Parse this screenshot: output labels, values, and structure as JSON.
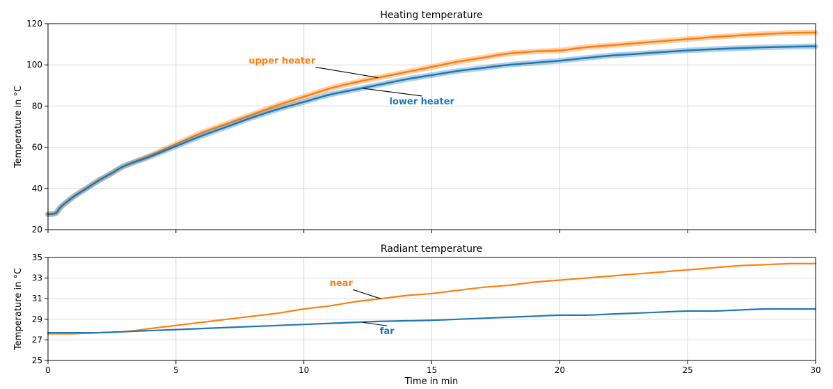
{
  "figure": {
    "xlabel": "Time in min",
    "x_ticks": [
      "0",
      "5",
      "10",
      "15",
      "20",
      "25",
      "30"
    ]
  },
  "chart_data": [
    {
      "type": "line",
      "title": "Heating temperature",
      "xlabel": "",
      "ylabel": "Temperature in °C",
      "xlim": [
        0,
        30
      ],
      "ylim": [
        20,
        120
      ],
      "x_ticks": [
        0,
        5,
        10,
        15,
        20,
        25,
        30
      ],
      "y_ticks": [
        20,
        40,
        60,
        80,
        100,
        120
      ],
      "y_tick_labels": [
        "20",
        "40",
        "60",
        "80",
        "100",
        "120"
      ],
      "grid": true,
      "legend": "inline labels",
      "series": [
        {
          "name": "upper heater",
          "color": "#ff7f0e",
          "x": [
            0,
            0.3,
            0.5,
            1,
            1.5,
            2,
            2.5,
            3,
            4,
            5,
            6,
            7,
            8,
            9,
            10,
            11,
            12,
            13,
            14,
            15,
            16,
            17,
            18,
            19,
            20,
            21,
            22,
            23,
            24,
            25,
            26,
            27,
            28,
            29,
            30
          ],
          "y": [
            27.5,
            28,
            31,
            36,
            40,
            44,
            47.5,
            51,
            56,
            61.5,
            67,
            71.5,
            76,
            80.5,
            84.5,
            88.5,
            91.5,
            94,
            96.5,
            99,
            101.5,
            103.5,
            105.5,
            106.5,
            107,
            108.5,
            109.5,
            110.5,
            111.5,
            112.5,
            113.5,
            114.3,
            115,
            115.5,
            115.7
          ]
        },
        {
          "name": "lower heater",
          "color": "#1f77b4",
          "x": [
            0,
            0.3,
            0.5,
            1,
            1.5,
            2,
            2.5,
            3,
            4,
            5,
            6,
            7,
            8,
            9,
            10,
            11,
            12,
            13,
            14,
            15,
            16,
            17,
            18,
            19,
            20,
            21,
            22,
            23,
            24,
            25,
            26,
            27,
            28,
            29,
            30
          ],
          "y": [
            27.5,
            28,
            31,
            36,
            40,
            44,
            47.5,
            51,
            55.5,
            60.5,
            65.5,
            70,
            74.5,
            78.5,
            82,
            85.5,
            88,
            90.5,
            93,
            95,
            97,
            98.5,
            100,
            101,
            102,
            103.3,
            104.5,
            105.3,
            106.2,
            107,
            107.6,
            108.1,
            108.5,
            108.8,
            109
          ]
        }
      ],
      "annotations": [
        {
          "text": "upper heater",
          "color": "#ff7f0e",
          "x": 12.9,
          "y": 93.8
        },
        {
          "text": "lower heater",
          "color": "#1f77b4",
          "x": 12.3,
          "y": 88.6
        }
      ]
    },
    {
      "type": "line",
      "title": "Radiant temperature",
      "xlabel": "Time in min",
      "ylabel": "Temperature in °C",
      "xlim": [
        0,
        30
      ],
      "ylim": [
        25,
        35
      ],
      "x_ticks": [
        0,
        5,
        10,
        15,
        20,
        25,
        30
      ],
      "x_tick_labels": [
        "0",
        "5",
        "10",
        "15",
        "20",
        "25",
        "30"
      ],
      "y_ticks": [
        25,
        27,
        29,
        31,
        33,
        35
      ],
      "y_tick_labels": [
        "25",
        "27",
        "29",
        "31",
        "33",
        "35"
      ],
      "grid": true,
      "legend": "inline labels",
      "series": [
        {
          "name": "near",
          "color": "#ff7f0e",
          "x": [
            0,
            1,
            2,
            3,
            4,
            5,
            6,
            7,
            8,
            9,
            10,
            11,
            12,
            13,
            14,
            15,
            16,
            17,
            18,
            19,
            20,
            21,
            22,
            23,
            24,
            25,
            26,
            27,
            28,
            29,
            30
          ],
          "y": [
            27.6,
            27.6,
            27.7,
            27.8,
            28.1,
            28.4,
            28.7,
            29.0,
            29.3,
            29.6,
            30.0,
            30.3,
            30.7,
            31.0,
            31.3,
            31.5,
            31.8,
            32.1,
            32.3,
            32.6,
            32.8,
            33.0,
            33.2,
            33.4,
            33.6,
            33.8,
            34.0,
            34.2,
            34.3,
            34.4,
            34.4
          ]
        },
        {
          "name": "far",
          "color": "#1f77b4",
          "x": [
            0,
            1,
            2,
            3,
            4,
            5,
            6,
            7,
            8,
            9,
            10,
            11,
            12,
            13,
            14,
            15,
            16,
            17,
            18,
            19,
            20,
            21,
            22,
            23,
            24,
            25,
            26,
            27,
            28,
            29,
            30
          ],
          "y": [
            27.7,
            27.7,
            27.7,
            27.8,
            27.9,
            28.0,
            28.1,
            28.2,
            28.3,
            28.4,
            28.5,
            28.6,
            28.7,
            28.8,
            28.85,
            28.9,
            29.0,
            29.1,
            29.2,
            29.3,
            29.4,
            29.4,
            29.5,
            29.6,
            29.7,
            29.8,
            29.8,
            29.9,
            30.0,
            30.0,
            30.0
          ]
        }
      ],
      "annotations": [
        {
          "text": "near",
          "color": "#ff7f0e",
          "x": 13.0,
          "y": 31.0
        },
        {
          "text": "far",
          "color": "#1f77b4",
          "x": 12.3,
          "y": 28.7
        }
      ]
    }
  ]
}
